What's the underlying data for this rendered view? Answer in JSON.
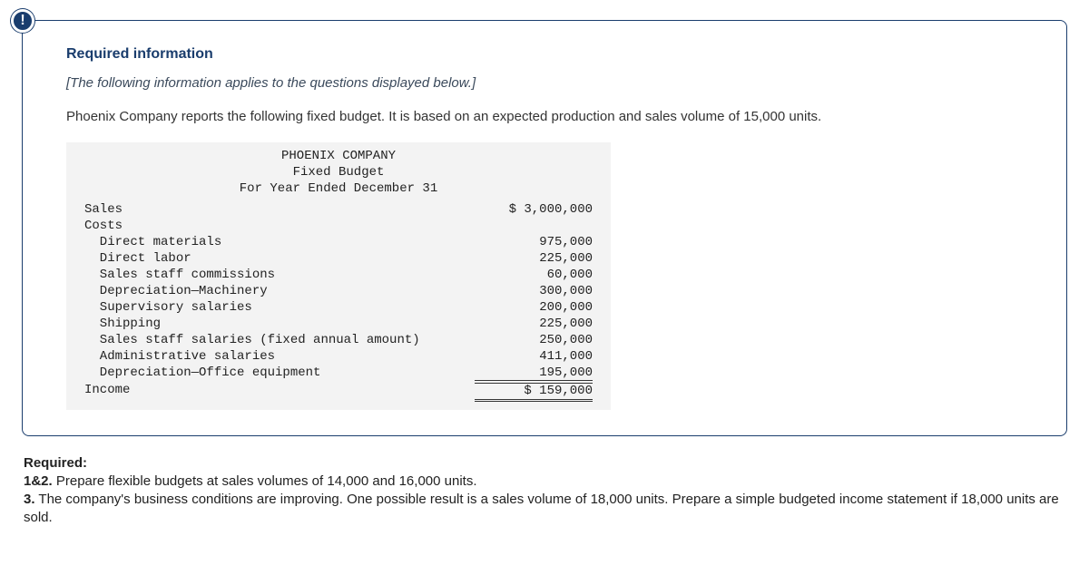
{
  "badge": "!",
  "heading": "Required information",
  "subheading": "[The following information applies to the questions displayed below.]",
  "intro": "Phoenix Company reports the following fixed budget. It is based on an expected production and sales volume of 15,000 units.",
  "budget": {
    "company": "PHOENIX COMPANY",
    "title": "Fixed Budget",
    "period": "For Year Ended December 31",
    "sales_label": "Sales",
    "sales_value": "$ 3,000,000",
    "costs_label": "Costs",
    "items": [
      {
        "label": "  Direct materials",
        "value": "975,000"
      },
      {
        "label": "  Direct labor",
        "value": "225,000"
      },
      {
        "label": "  Sales staff commissions",
        "value": "60,000"
      },
      {
        "label": "  Depreciation—Machinery",
        "value": "300,000"
      },
      {
        "label": "  Supervisory salaries",
        "value": "200,000"
      },
      {
        "label": "  Shipping",
        "value": "225,000"
      },
      {
        "label": "  Sales staff salaries (fixed annual amount)",
        "value": "250,000"
      },
      {
        "label": "  Administrative salaries",
        "value": "411,000"
      },
      {
        "label": "  Depreciation—Office equipment",
        "value": "195,000"
      }
    ],
    "income_label": "Income",
    "income_value": "$ 159,000"
  },
  "required": {
    "title": "Required:",
    "q1_num": "1&2.",
    "q1_text": " Prepare flexible budgets at sales volumes of 14,000 and 16,000 units.",
    "q3_num": "3.",
    "q3_text": " The company's business conditions are improving. One possible result is a sales volume of 18,000 units. Prepare a simple budgeted income statement if 18,000 units are sold."
  },
  "style": {
    "brand_color": "#1a3d6d",
    "box_bg": "#f3f3f3",
    "text_color": "#333333",
    "mono_font": "Courier New"
  }
}
